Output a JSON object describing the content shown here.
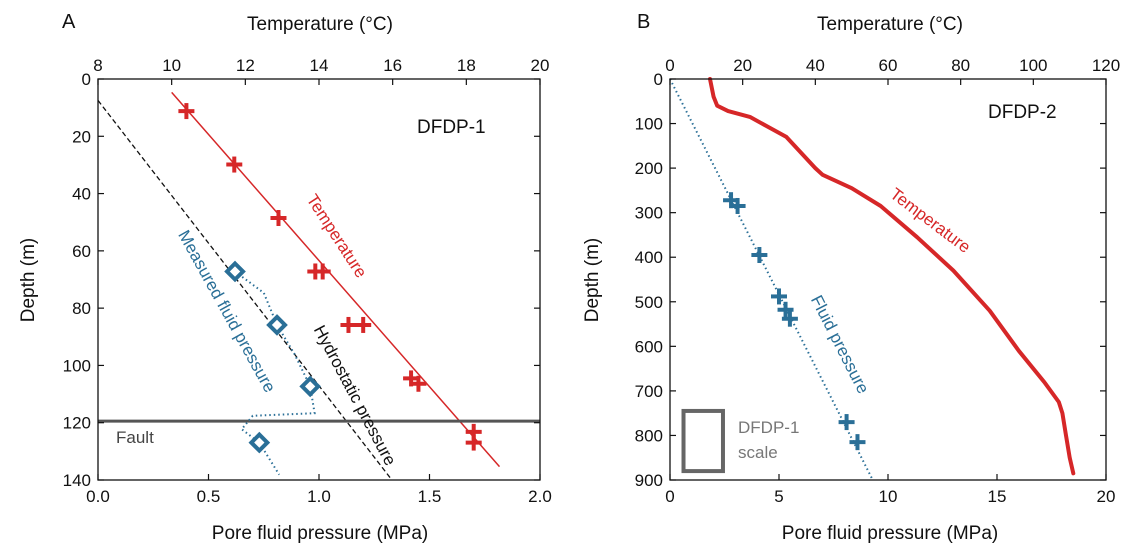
{
  "chart_data": [
    {
      "panel": "A",
      "type": "scatter",
      "well_label": "DFDP-1",
      "xlabel_bottom": "Pore fluid pressure (MPa)",
      "xlabel_top": "Temperature (°C)",
      "ylabel": "Depth (m)",
      "xlim_bottom": [
        0.0,
        2.0
      ],
      "xlim_top": [
        8,
        20
      ],
      "ylim": [
        0,
        150
      ],
      "y_inverted": true,
      "x_ticks_bottom": [
        "0.0",
        "0.5",
        "1.0",
        "1.5",
        "2.0"
      ],
      "x_ticks_top": [
        "8",
        "10",
        "12",
        "14",
        "16",
        "18",
        "20"
      ],
      "y_ticks": [
        "0",
        "20",
        "40",
        "60",
        "80",
        "100",
        "120",
        "140"
      ],
      "grid": false,
      "colors": {
        "temperature": "#d62728",
        "fluid": "#2a6f97",
        "hydrostatic": "#111111",
        "fault": "#555555"
      },
      "temperature_points": [
        {
          "temp": 10.4,
          "depth": 12
        },
        {
          "temp": 11.7,
          "depth": 32
        },
        {
          "temp": 12.9,
          "depth": 52
        },
        {
          "temp": 13.9,
          "depth": 72
        },
        {
          "temp": 14.1,
          "depth": 72
        },
        {
          "temp": 14.8,
          "depth": 92
        },
        {
          "temp": 15.2,
          "depth": 92
        },
        {
          "temp": 16.5,
          "depth": 112
        },
        {
          "temp": 16.7,
          "depth": 114
        },
        {
          "temp": 18.2,
          "depth": 132
        },
        {
          "temp": 18.2,
          "depth": 136
        }
      ],
      "temperature_fit": [
        {
          "temp": 10.0,
          "depth": 5
        },
        {
          "temp": 18.9,
          "depth": 145
        }
      ],
      "fluid_pressure_points": [
        {
          "pressure": 0.62,
          "depth": 72
        },
        {
          "pressure": 0.81,
          "depth": 92
        },
        {
          "pressure": 0.96,
          "depth": 115
        },
        {
          "pressure": 0.73,
          "depth": 136
        }
      ],
      "fluid_pressure_curve": [
        {
          "pressure": 0.62,
          "depth": 72
        },
        {
          "pressure": 0.75,
          "depth": 80
        },
        {
          "pressure": 0.81,
          "depth": 92
        },
        {
          "pressure": 0.89,
          "depth": 103
        },
        {
          "pressure": 0.96,
          "depth": 115
        },
        {
          "pressure": 0.98,
          "depth": 125
        },
        {
          "pressure": 0.7,
          "depth": 126
        },
        {
          "pressure": 0.65,
          "depth": 131
        },
        {
          "pressure": 0.73,
          "depth": 136
        },
        {
          "pressure": 0.82,
          "depth": 148
        }
      ],
      "hydrostatic_line": [
        {
          "pressure": 0.0,
          "depth": 8
        },
        {
          "pressure": 1.33,
          "depth": 150
        }
      ],
      "fault_depth": 128,
      "annotations": {
        "temperature": "Temperature",
        "measured_fluid_pressure": "Measured fluid pressure",
        "hydrostatic_pressure": "Hydrostatic pressure",
        "fault": "Fault"
      }
    },
    {
      "panel": "B",
      "type": "line",
      "well_label": "DFDP-2",
      "xlabel_bottom": "Pore fluid pressure (MPa)",
      "xlabel_top": "Temperature (°C)",
      "ylabel": "Depth (m)",
      "xlim_bottom": [
        0,
        20
      ],
      "xlim_top": [
        0,
        120
      ],
      "ylim": [
        0,
        900
      ],
      "y_inverted": true,
      "x_ticks_bottom": [
        "0",
        "5",
        "10",
        "15",
        "20"
      ],
      "x_ticks_top": [
        "0",
        "20",
        "40",
        "60",
        "80",
        "100",
        "120"
      ],
      "y_ticks": [
        "0",
        "100",
        "200",
        "300",
        "400",
        "500",
        "600",
        "700",
        "800",
        "900"
      ],
      "grid": false,
      "colors": {
        "temperature": "#d62728",
        "fluid": "#2a6f97",
        "scale_box": "#666666"
      },
      "temperature_curve": [
        {
          "temp": 11,
          "depth": 0
        },
        {
          "temp": 12,
          "depth": 40
        },
        {
          "temp": 13,
          "depth": 60
        },
        {
          "temp": 16,
          "depth": 72
        },
        {
          "temp": 22,
          "depth": 85
        },
        {
          "temp": 32,
          "depth": 130
        },
        {
          "temp": 40,
          "depth": 200
        },
        {
          "temp": 42,
          "depth": 215
        },
        {
          "temp": 50,
          "depth": 245
        },
        {
          "temp": 58,
          "depth": 285
        },
        {
          "temp": 68,
          "depth": 355
        },
        {
          "temp": 78,
          "depth": 430
        },
        {
          "temp": 88,
          "depth": 520
        },
        {
          "temp": 96,
          "depth": 610
        },
        {
          "temp": 103,
          "depth": 680
        },
        {
          "temp": 107,
          "depth": 725
        },
        {
          "temp": 108,
          "depth": 750
        },
        {
          "temp": 109,
          "depth": 800
        },
        {
          "temp": 110,
          "depth": 850
        },
        {
          "temp": 111,
          "depth": 885
        }
      ],
      "fluid_pressure_points": [
        {
          "pressure": 2.8,
          "depth": 272
        },
        {
          "pressure": 3.1,
          "depth": 285
        },
        {
          "pressure": 4.1,
          "depth": 395
        },
        {
          "pressure": 5.0,
          "depth": 488
        },
        {
          "pressure": 5.3,
          "depth": 518
        },
        {
          "pressure": 5.5,
          "depth": 538
        },
        {
          "pressure": 8.1,
          "depth": 770
        },
        {
          "pressure": 8.6,
          "depth": 815
        }
      ],
      "fluid_pressure_line": [
        {
          "pressure": 0.0,
          "depth": 0
        },
        {
          "pressure": 9.3,
          "depth": 900
        }
      ],
      "annotations": {
        "temperature": "Temperature",
        "fluid_pressure": "Fluid pressure",
        "scale_label_1": "DFDP-1",
        "scale_label_2": "scale"
      },
      "scale_box": {
        "pressure_min": 0.62,
        "pressure_max": 2.43,
        "depth_min": 745,
        "depth_max": 880
      }
    }
  ]
}
